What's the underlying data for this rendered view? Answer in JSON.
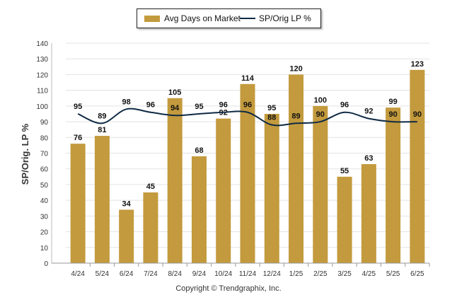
{
  "chart_data": {
    "type": "bar",
    "categories": [
      "4/24",
      "5/24",
      "6/24",
      "7/24",
      "8/24",
      "9/24",
      "10/24",
      "11/24",
      "12/24",
      "1/25",
      "2/25",
      "3/25",
      "4/25",
      "5/25",
      "6/25"
    ],
    "series": [
      {
        "name": "Avg Days on Market",
        "type": "bar",
        "color": "#c39a3d",
        "values": [
          76,
          81,
          34,
          45,
          105,
          68,
          92,
          114,
          95,
          120,
          100,
          55,
          63,
          99,
          123
        ]
      },
      {
        "name": "SP/Orig LP %",
        "type": "line",
        "color": "#0f2a44",
        "values": [
          95,
          89,
          98,
          96,
          94,
          95,
          96,
          96,
          88,
          89,
          90,
          96,
          92,
          90,
          90
        ]
      }
    ],
    "title": "",
    "xlabel": "",
    "ylabel": "SP/Orig. LP %",
    "ylim": [
      0,
      140
    ],
    "yticks": [
      0,
      10,
      20,
      30,
      40,
      50,
      60,
      70,
      80,
      90,
      100,
      110,
      120,
      130,
      140
    ],
    "grid": true,
    "legend_position": "top-center"
  },
  "footer": {
    "copyright": "Copyright © Trendgraphix, Inc."
  }
}
